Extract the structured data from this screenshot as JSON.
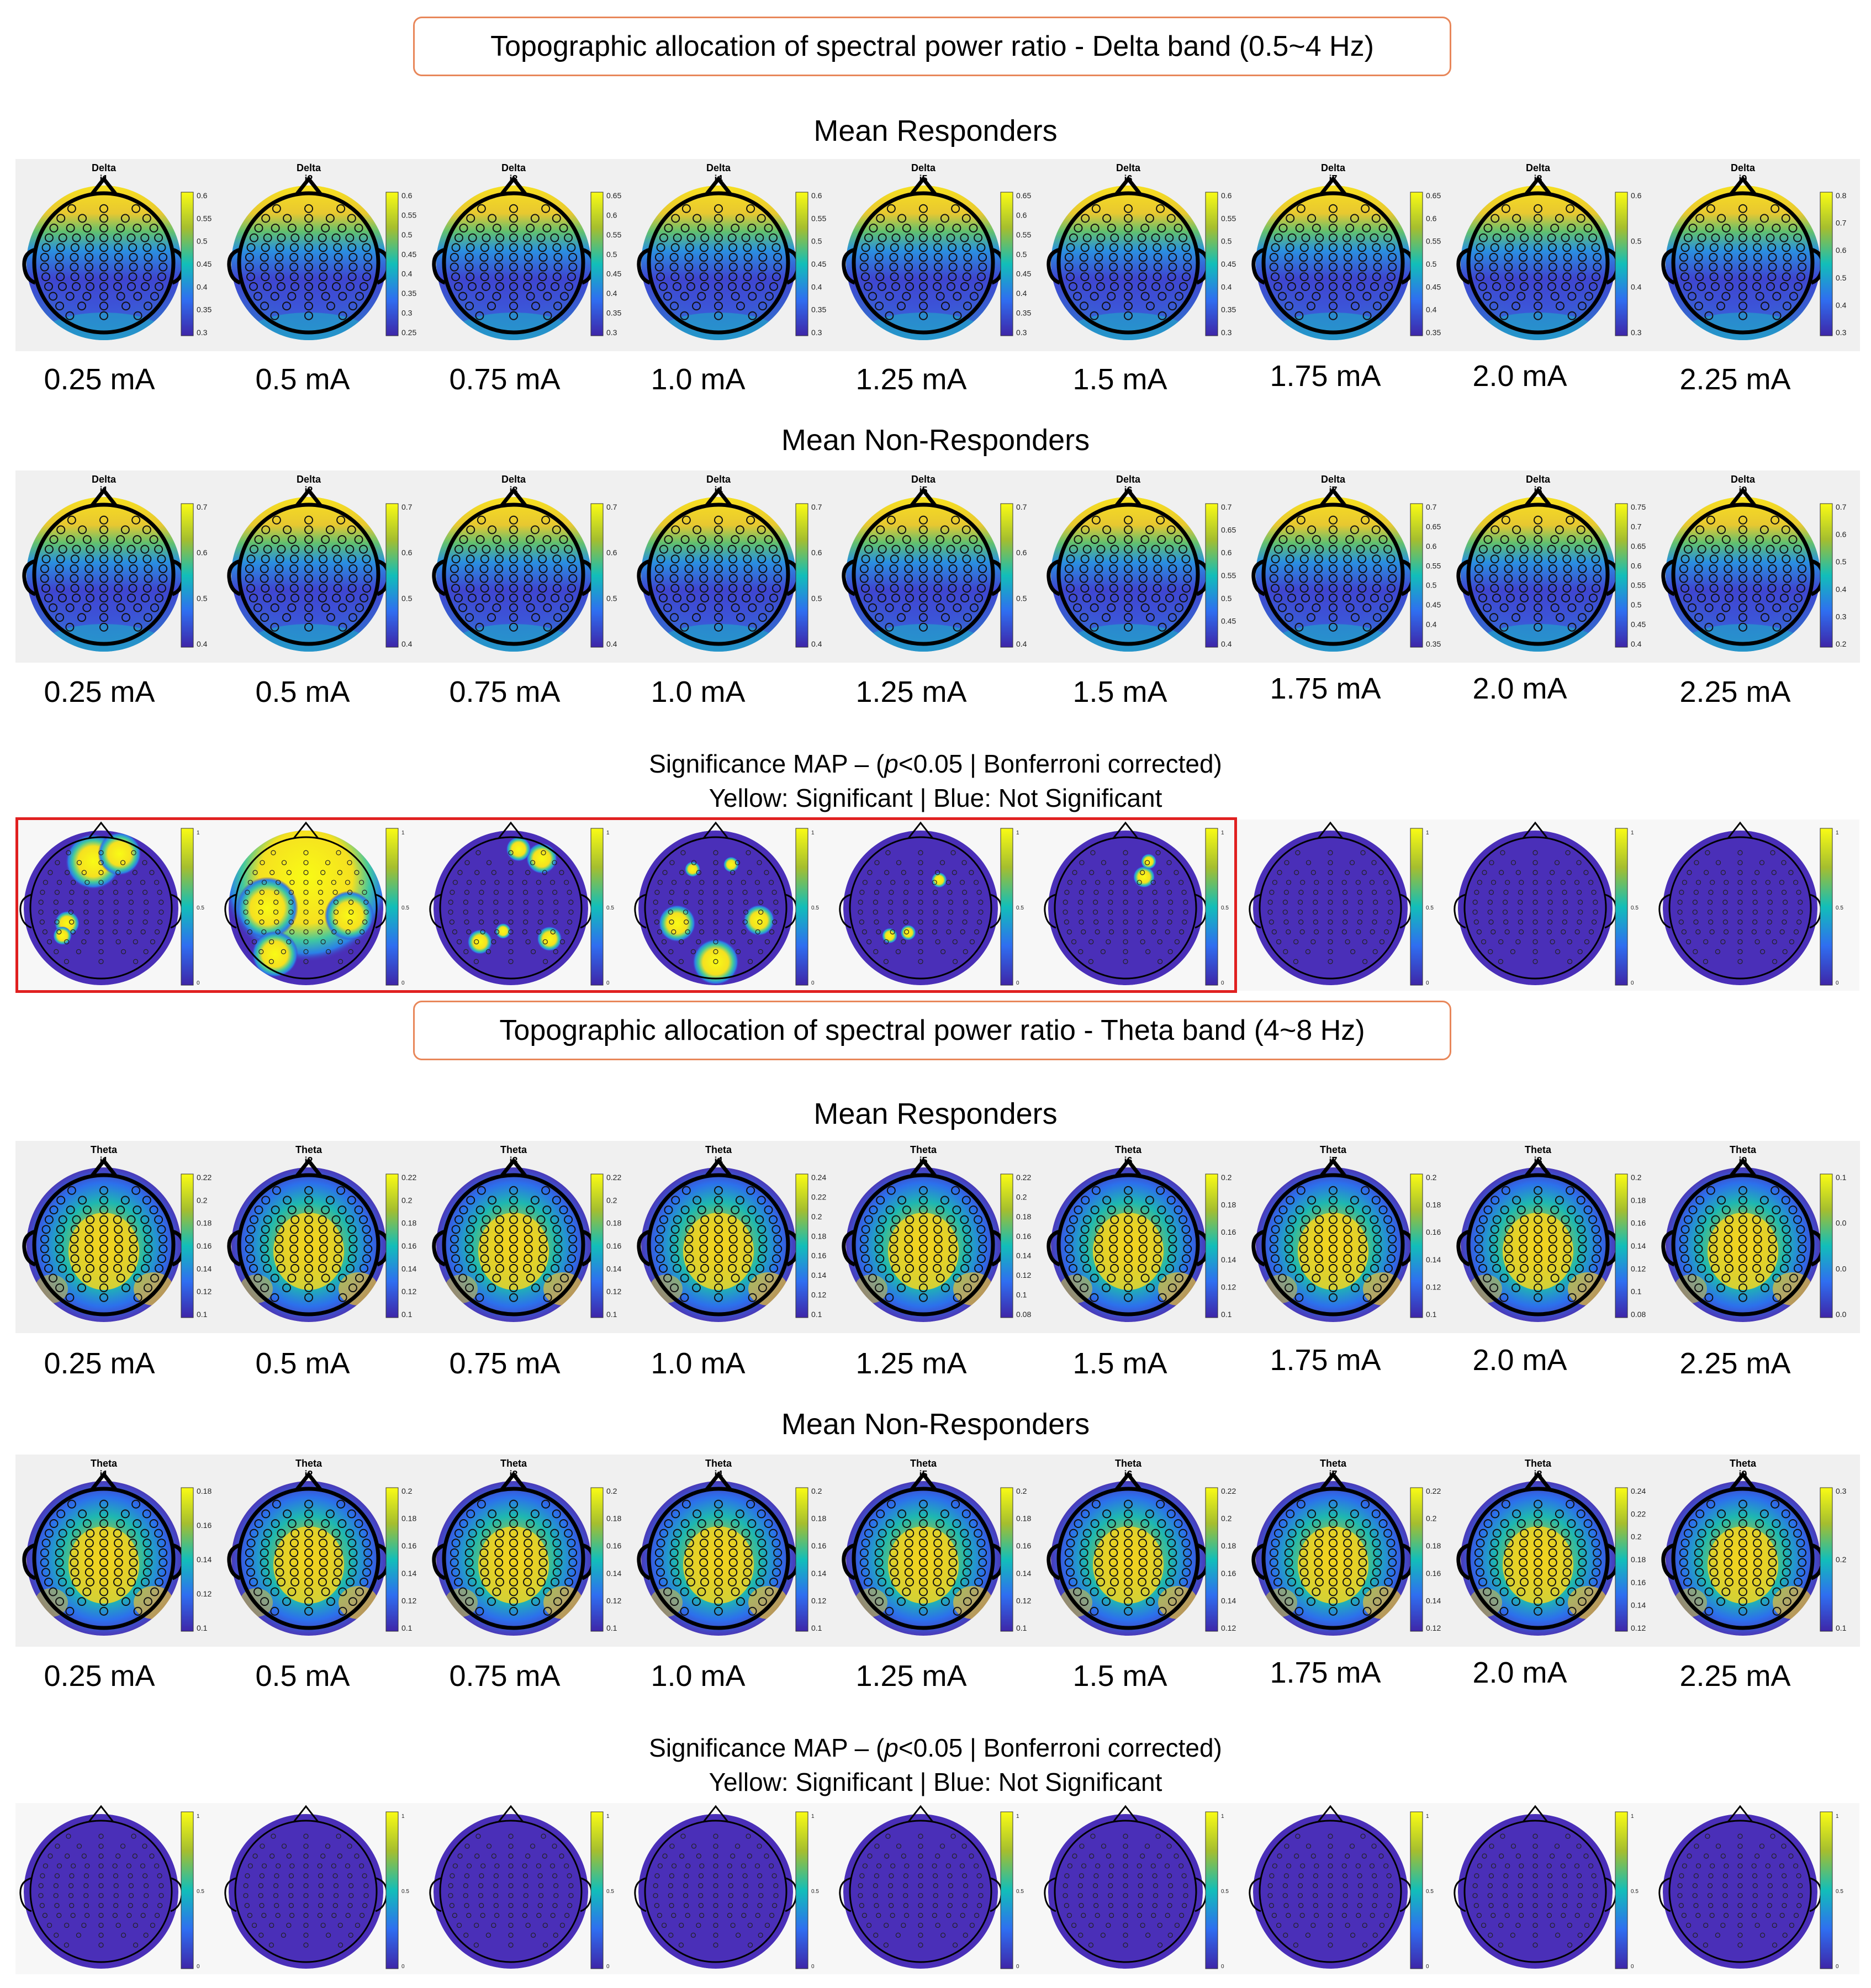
{
  "sections": [
    {
      "band_title": "Topographic allocation of spectral power ratio - Delta band (0.5~4 Hz)",
      "band_label": "Delta",
      "responders_title": "Mean Responders",
      "nonresponders_title": "Mean Non-Responders",
      "significance_title": "Significance MAP – (",
      "significance_p": "p",
      "significance_tail": "<0.05 | Bonferroni corrected)",
      "significance_legend": "Yellow: Significant | Blue: Not Significant",
      "intensity_ids": [
        "i1",
        "i2",
        "i3",
        "i4",
        "i5",
        "i6",
        "i7",
        "i8",
        "i9"
      ],
      "doses": [
        "0.25 mA",
        "0.5 mA",
        "0.75 mA",
        "1.0 mA",
        "1.25 mA",
        "1.5 mA",
        "1.75 mA",
        "2.0 mA",
        "2.25 mA"
      ],
      "responder_ticks": [
        [
          "0.6",
          "0.55",
          "0.5",
          "0.45",
          "0.4",
          "0.35",
          "0.3"
        ],
        [
          "0.6",
          "0.55",
          "0.5",
          "0.45",
          "0.4",
          "0.35",
          "0.3",
          "0.25"
        ],
        [
          "0.65",
          "0.6",
          "0.55",
          "0.5",
          "0.45",
          "0.4",
          "0.35",
          "0.3"
        ],
        [
          "0.6",
          "0.55",
          "0.5",
          "0.45",
          "0.4",
          "0.35",
          "0.3"
        ],
        [
          "0.65",
          "0.6",
          "0.55",
          "0.5",
          "0.45",
          "0.4",
          "0.35",
          "0.3"
        ],
        [
          "0.6",
          "0.55",
          "0.5",
          "0.45",
          "0.4",
          "0.35",
          "0.3"
        ],
        [
          "0.65",
          "0.6",
          "0.55",
          "0.5",
          "0.45",
          "0.4",
          "0.35"
        ],
        [
          "0.6",
          "0.5",
          "0.4",
          "0.3"
        ],
        [
          "0.8",
          "0.7",
          "0.6",
          "0.5",
          "0.4",
          "0.3"
        ]
      ],
      "nonresponder_ticks": [
        [
          "0.7",
          "0.6",
          "0.5",
          "0.4"
        ],
        [
          "0.7",
          "0.6",
          "0.5",
          "0.4"
        ],
        [
          "0.7",
          "0.6",
          "0.5",
          "0.4"
        ],
        [
          "0.7",
          "0.6",
          "0.5",
          "0.4"
        ],
        [
          "0.7",
          "0.6",
          "0.5",
          "0.4"
        ],
        [
          "0.7",
          "0.65",
          "0.6",
          "0.55",
          "0.5",
          "0.45",
          "0.4"
        ],
        [
          "0.7",
          "0.65",
          "0.6",
          "0.55",
          "0.5",
          "0.45",
          "0.4",
          "0.35"
        ],
        [
          "0.75",
          "0.7",
          "0.65",
          "0.6",
          "0.55",
          "0.5",
          "0.45",
          "0.4"
        ],
        [
          "0.7",
          "0.6",
          "0.5",
          "0.4",
          "0.3",
          "0.2"
        ]
      ],
      "significance_ticks": [
        "1",
        "0.5",
        "0"
      ],
      "significant_regions": [
        [
          [
            0.45,
            0.2,
            0.18
          ],
          [
            0.62,
            0.15,
            0.14
          ],
          [
            0.28,
            0.6,
            0.08
          ],
          [
            0.25,
            0.68,
            0.06
          ]
        ],
        [
          [
            0.5,
            0.3,
            0.55
          ],
          [
            0.25,
            0.5,
            0.2
          ],
          [
            0.78,
            0.55,
            0.16
          ],
          [
            0.3,
            0.8,
            0.15
          ]
        ],
        [
          [
            0.7,
            0.18,
            0.1
          ],
          [
            0.55,
            0.12,
            0.08
          ],
          [
            0.3,
            0.72,
            0.08
          ],
          [
            0.75,
            0.7,
            0.08
          ],
          [
            0.45,
            0.65,
            0.05
          ]
        ],
        [
          [
            0.25,
            0.6,
            0.12
          ],
          [
            0.5,
            0.85,
            0.15
          ],
          [
            0.78,
            0.58,
            0.1
          ],
          [
            0.35,
            0.25,
            0.05
          ],
          [
            0.6,
            0.22,
            0.05
          ]
        ],
        [
          [
            0.62,
            0.32,
            0.05
          ],
          [
            0.3,
            0.68,
            0.05
          ],
          [
            0.42,
            0.66,
            0.05
          ]
        ],
        [
          [
            0.62,
            0.3,
            0.07
          ],
          [
            0.65,
            0.2,
            0.05
          ]
        ],
        [],
        [],
        []
      ]
    },
    {
      "band_title": "Topographic allocation of spectral power ratio - Theta band (4~8 Hz)",
      "band_label": "Theta",
      "responders_title": "Mean Responders",
      "nonresponders_title": "Mean Non-Responders",
      "significance_title": "Significance MAP – (",
      "significance_p": "p",
      "significance_tail": "<0.05 | Bonferroni corrected)",
      "significance_legend": "Yellow: Significant | Blue: Not Significant",
      "intensity_ids": [
        "i1",
        "i2",
        "i3",
        "i4",
        "i5",
        "i6",
        "i7",
        "i8",
        "i9"
      ],
      "doses": [
        "0.25 mA",
        "0.5 mA",
        "0.75 mA",
        "1.0 mA",
        "1.25 mA",
        "1.5 mA",
        "1.75 mA",
        "2.0 mA",
        "2.25 mA"
      ],
      "responder_ticks": [
        [
          "0.22",
          "0.2",
          "0.18",
          "0.16",
          "0.14",
          "0.12",
          "0.1"
        ],
        [
          "0.22",
          "0.2",
          "0.18",
          "0.16",
          "0.14",
          "0.12",
          "0.1"
        ],
        [
          "0.22",
          "0.2",
          "0.18",
          "0.16",
          "0.14",
          "0.12",
          "0.1"
        ],
        [
          "0.24",
          "0.22",
          "0.2",
          "0.18",
          "0.16",
          "0.14",
          "0.12",
          "0.1"
        ],
        [
          "0.22",
          "0.2",
          "0.18",
          "0.16",
          "0.14",
          "0.12",
          "0.1",
          "0.08"
        ],
        [
          "0.2",
          "0.18",
          "0.16",
          "0.14",
          "0.12",
          "0.1"
        ],
        [
          "0.2",
          "0.18",
          "0.16",
          "0.14",
          "0.12",
          "0.1"
        ],
        [
          "0.2",
          "0.18",
          "0.16",
          "0.14",
          "0.12",
          "0.1",
          "0.08"
        ],
        [
          "0.1",
          "0.0",
          "0.0",
          "0.0"
        ]
      ],
      "nonresponder_ticks": [
        [
          "0.18",
          "0.16",
          "0.14",
          "0.12",
          "0.1"
        ],
        [
          "0.2",
          "0.18",
          "0.16",
          "0.14",
          "0.12",
          "0.1"
        ],
        [
          "0.2",
          "0.18",
          "0.16",
          "0.14",
          "0.12",
          "0.1"
        ],
        [
          "0.2",
          "0.18",
          "0.16",
          "0.14",
          "0.12",
          "0.1"
        ],
        [
          "0.2",
          "0.18",
          "0.16",
          "0.14",
          "0.12",
          "0.1"
        ],
        [
          "0.22",
          "0.2",
          "0.18",
          "0.16",
          "0.14",
          "0.12"
        ],
        [
          "0.22",
          "0.2",
          "0.18",
          "0.16",
          "0.14",
          "0.12"
        ],
        [
          "0.24",
          "0.22",
          "0.2",
          "0.18",
          "0.16",
          "0.14",
          "0.12"
        ],
        [
          "0.3",
          "0.2",
          "0.1"
        ]
      ],
      "significance_ticks": [
        "1",
        "0.5",
        "0"
      ],
      "significant_regions": [
        [],
        [],
        [],
        [],
        [],
        [],
        [],
        [],
        []
      ]
    }
  ],
  "colors": {
    "parula_low": "#3e26a8",
    "parula_mid": "#12beb9",
    "parula_high": "#f9fb15",
    "accent_box": "#e8875a",
    "highlight": "#e02020"
  }
}
